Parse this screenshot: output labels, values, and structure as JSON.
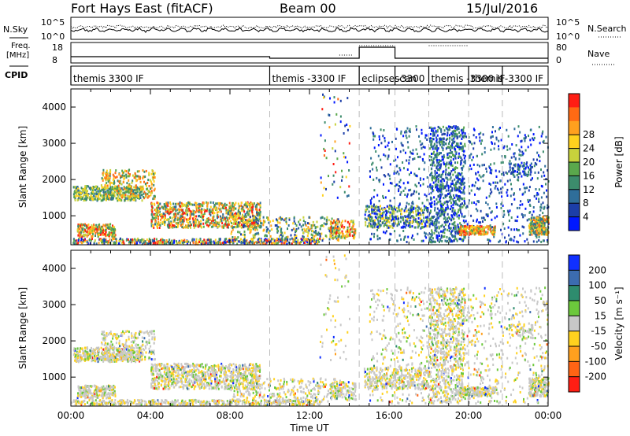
{
  "header": {
    "radar": "Fort Hays East (fitACF)",
    "beam": "Beam 00",
    "date": "15/Jul/2016"
  },
  "top_panels": {
    "nsky_label": "N.Sky",
    "nsky_ticks": [
      "10^5",
      "10^0"
    ],
    "nsearch_label": "N.Search",
    "freq_label_1": "Freq.",
    "freq_label_2": "[MHz]",
    "freq_ticks": [
      "18",
      "8"
    ],
    "nave_ticks": [
      "80",
      "0"
    ],
    "nave_label": "Nave",
    "cpid_label": "CPID"
  },
  "cpid_segments": [
    {
      "start_hr": 0.0,
      "end_hr": 10.0,
      "label": "themis 3300 IF"
    },
    {
      "start_hr": 10.0,
      "end_hr": 14.5,
      "label": "themis -3300 IF"
    },
    {
      "start_hr": 14.5,
      "end_hr": 16.3,
      "label": "eclipsescan"
    },
    {
      "start_hr": 16.3,
      "end_hr": 18.0,
      "label": "-3300"
    },
    {
      "start_hr": 18.0,
      "end_hr": 20.0,
      "label": "themis -3300 IF"
    },
    {
      "start_hr": 20.0,
      "end_hr": 21.7,
      "label": "themis"
    },
    {
      "start_hr": 21.7,
      "end_hr": 24.0,
      "label": "-3300 IF"
    }
  ],
  "chart_data": [
    {
      "type": "heatmap",
      "title": "Power",
      "xlabel": "",
      "ylabel": "Slant Range [km]",
      "xlim_hours": [
        0,
        24
      ],
      "ylim": [
        200,
        4500
      ],
      "yticks": [
        1000,
        2000,
        3000,
        4000
      ],
      "colorbar_label": "Power [dB]",
      "colorbar_ticks": [
        4,
        8,
        12,
        16,
        20,
        24,
        28
      ],
      "colorbar_colors": [
        "#0018ff",
        "#1c3ea8",
        "#2f6e9a",
        "#3c8c6c",
        "#5aa84c",
        "#c8d23c",
        "#ffd21e",
        "#ffa01e",
        "#ff6a14",
        "#ff1e14"
      ]
    },
    {
      "type": "heatmap",
      "title": "Velocity",
      "xlabel": "Time UT",
      "ylabel": "Slant Range [km]",
      "xlim_hours": [
        0,
        24
      ],
      "ylim": [
        200,
        4500
      ],
      "yticks": [
        1000,
        2000,
        3000,
        4000
      ],
      "xticks": [
        "00:00",
        "04:00",
        "08:00",
        "12:00",
        "16:00",
        "20:00",
        "00:00"
      ],
      "colorbar_label": "Velocity [m s⁻¹]",
      "colorbar_ticks": [
        "200",
        "100",
        "50",
        "15",
        "-15",
        "-50",
        "-100",
        "-200"
      ],
      "colorbar_colors": [
        "#1030ff",
        "#3c6cb0",
        "#2e8c6e",
        "#6cc83c",
        "#c8c8c8",
        "#ffd21e",
        "#ffa01e",
        "#ff6414",
        "#ff1e14"
      ]
    }
  ]
}
